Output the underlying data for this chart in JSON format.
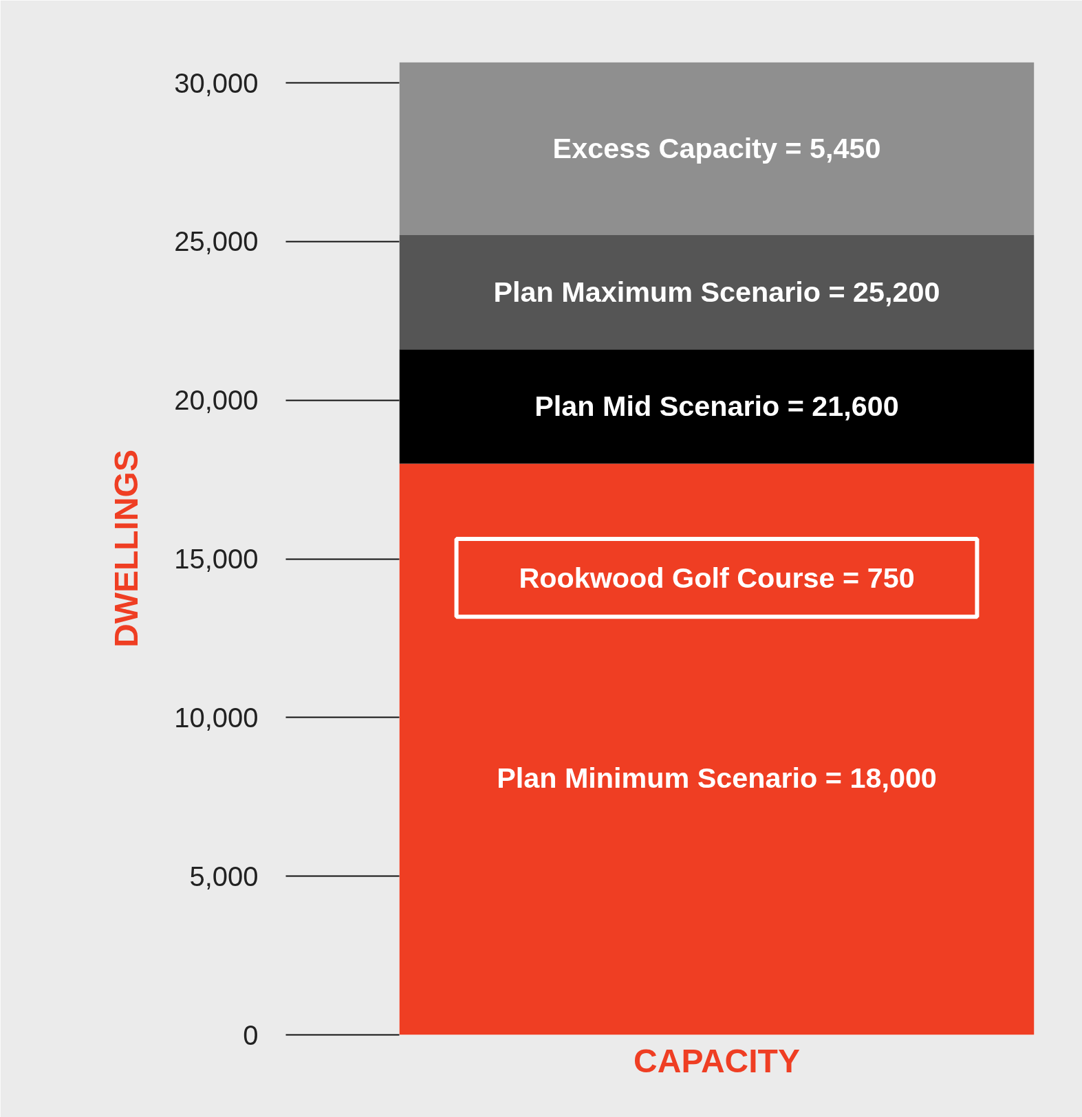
{
  "chart_data": {
    "type": "bar",
    "stacked": true,
    "xlabel": "CAPACITY",
    "ylabel": "DWELLINGS",
    "categories": [
      null
    ],
    "series": [
      {
        "color": "#ef3e23",
        "values": [
          18000
        ]
      },
      {
        "color": "#000000",
        "values": [
          3600
        ]
      },
      {
        "color": "#555555",
        "values": [
          3600
        ]
      },
      {
        "color": "#8f8f8f",
        "values": [
          5450
        ]
      }
    ],
    "annotations": [
      "Plan Minimum Scenario = 18,000",
      "Plan Mid Scenario = 21,600",
      "Plan Maximum Scenario = 25,200",
      "Excess Capacity = 5,450",
      "Rookwood Golf Course = 750"
    ],
    "ylim": [
      0,
      30650
    ],
    "yticks": [
      {
        "value": 0,
        "label": "0"
      },
      {
        "value": 5000,
        "label": "5,000"
      },
      {
        "value": 10000,
        "label": "10,000"
      },
      {
        "value": 15000,
        "label": "15,000"
      },
      {
        "value": 20000,
        "label": "20,000"
      },
      {
        "value": 25000,
        "label": "25,000"
      },
      {
        "value": 30000,
        "label": "30,000"
      }
    ]
  }
}
